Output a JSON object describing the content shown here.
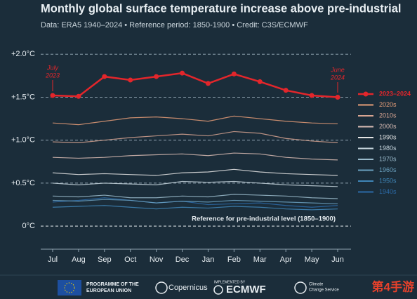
{
  "chart_data": {
    "type": "line",
    "title": "Monthly global surface temperature increase above pre-industrial",
    "subtitle": "Data: ERA5 1940–2024 • Reference period: 1850-1900 • Credit: C3S/ECMWF",
    "categories": [
      "Jul",
      "Aug",
      "Sep",
      "Oct",
      "Nov",
      "Dec",
      "Jan",
      "Feb",
      "Mar",
      "Apr",
      "May",
      "Jun"
    ],
    "ylim": [
      -0.26,
      2.1
    ],
    "yticks": [
      {
        "value": 0,
        "label": "0°C"
      },
      {
        "value": 0.5,
        "label": "+0.5°C"
      },
      {
        "value": 1.0,
        "label": "+1.0°C"
      },
      {
        "value": 1.5,
        "label": "+1.5°C"
      },
      {
        "value": 2.0,
        "label": "+2.0°C"
      }
    ],
    "grid": true,
    "legend": "right",
    "series": [
      {
        "name": "1940s",
        "color": "#2b6aa8",
        "values": [
          0.28,
          0.3,
          0.33,
          0.3,
          0.27,
          0.29,
          0.25,
          0.26,
          0.27,
          0.24,
          0.22,
          0.24
        ]
      },
      {
        "name": "1950s",
        "color": "#3f86b8",
        "values": [
          0.22,
          0.23,
          0.24,
          0.22,
          0.2,
          0.22,
          0.21,
          0.23,
          0.22,
          0.2,
          0.19,
          0.2
        ]
      },
      {
        "name": "1960s",
        "color": "#6aa0bf",
        "values": [
          0.3,
          0.29,
          0.31,
          0.3,
          0.27,
          0.29,
          0.28,
          0.3,
          0.29,
          0.28,
          0.27,
          0.26
        ]
      },
      {
        "name": "1970s",
        "color": "#9bbccd",
        "values": [
          0.35,
          0.34,
          0.36,
          0.33,
          0.33,
          0.35,
          0.34,
          0.37,
          0.36,
          0.35,
          0.33,
          0.32
        ]
      },
      {
        "name": "1980s",
        "color": "#c7d6de",
        "values": [
          0.5,
          0.48,
          0.5,
          0.49,
          0.48,
          0.52,
          0.51,
          0.52,
          0.5,
          0.48,
          0.47,
          0.46
        ]
      },
      {
        "name": "1990s",
        "color": "#e4e4e4",
        "values": [
          0.62,
          0.6,
          0.61,
          0.6,
          0.59,
          0.62,
          0.63,
          0.66,
          0.63,
          0.61,
          0.6,
          0.59
        ]
      },
      {
        "name": "2000s",
        "color": "#d9bcb4",
        "values": [
          0.8,
          0.79,
          0.8,
          0.82,
          0.83,
          0.84,
          0.82,
          0.85,
          0.84,
          0.8,
          0.78,
          0.77
        ]
      },
      {
        "name": "2010s",
        "color": "#d8a592",
        "values": [
          0.98,
          0.97,
          1.0,
          1.03,
          1.05,
          1.07,
          1.05,
          1.1,
          1.08,
          1.02,
          0.99,
          0.97
        ]
      },
      {
        "name": "2020s",
        "color": "#e89e78",
        "values": [
          1.2,
          1.18,
          1.22,
          1.26,
          1.27,
          1.25,
          1.22,
          1.28,
          1.25,
          1.22,
          1.2,
          1.19
        ]
      },
      {
        "name": "2023–2024",
        "color": "#e3262b",
        "values": [
          1.52,
          1.51,
          1.74,
          1.7,
          1.74,
          1.78,
          1.66,
          1.77,
          1.68,
          1.58,
          1.52,
          1.5
        ]
      }
    ],
    "annotations": [
      "July",
      "2023",
      "June",
      "2024",
      "Reference for pre-industrial level (1850–1900)"
    ]
  },
  "footer": {
    "eu": [
      "PROGRAMME OF THE",
      "EUROPEAN UNION"
    ],
    "copernicus": "Copernicus",
    "implemented": "IMPLEMENTED BY",
    "ecmwf": "ECMWF",
    "c3s": [
      "Climate",
      "Change Service"
    ],
    "watermark": "第4手游"
  }
}
